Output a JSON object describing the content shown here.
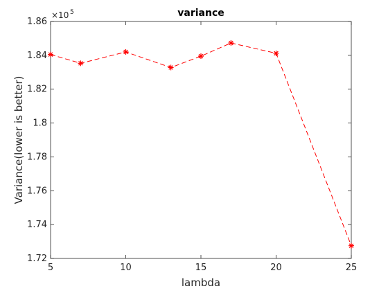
{
  "chart_data": {
    "type": "line",
    "title": "variance",
    "xlabel": "lambda",
    "ylabel": "Variance(lower is better)",
    "xlim": [
      5,
      25
    ],
    "ylim": [
      1.72,
      1.86
    ],
    "y_scale_note": "×10",
    "y_scale_exponent": "5",
    "x_ticks": [
      "5",
      "10",
      "15",
      "20",
      "25"
    ],
    "x_tick_values": [
      5,
      10,
      15,
      20,
      25
    ],
    "y_ticks": [
      "1.72",
      "1.74",
      "1.76",
      "1.78",
      "1.8",
      "1.82",
      "1.84",
      "1.86"
    ],
    "y_tick_values": [
      1.72,
      1.74,
      1.76,
      1.78,
      1.8,
      1.82,
      1.84,
      1.86
    ],
    "grid": false,
    "series": [
      {
        "x": [
          5,
          7,
          10,
          13,
          15,
          17,
          20,
          25
        ],
        "y": [
          1.8405,
          1.8353,
          1.842,
          1.8328,
          1.8395,
          1.8473,
          1.8412,
          1.7275
        ],
        "color": "#ff0000",
        "line_style": "dashed",
        "marker": "asterisk"
      }
    ]
  }
}
